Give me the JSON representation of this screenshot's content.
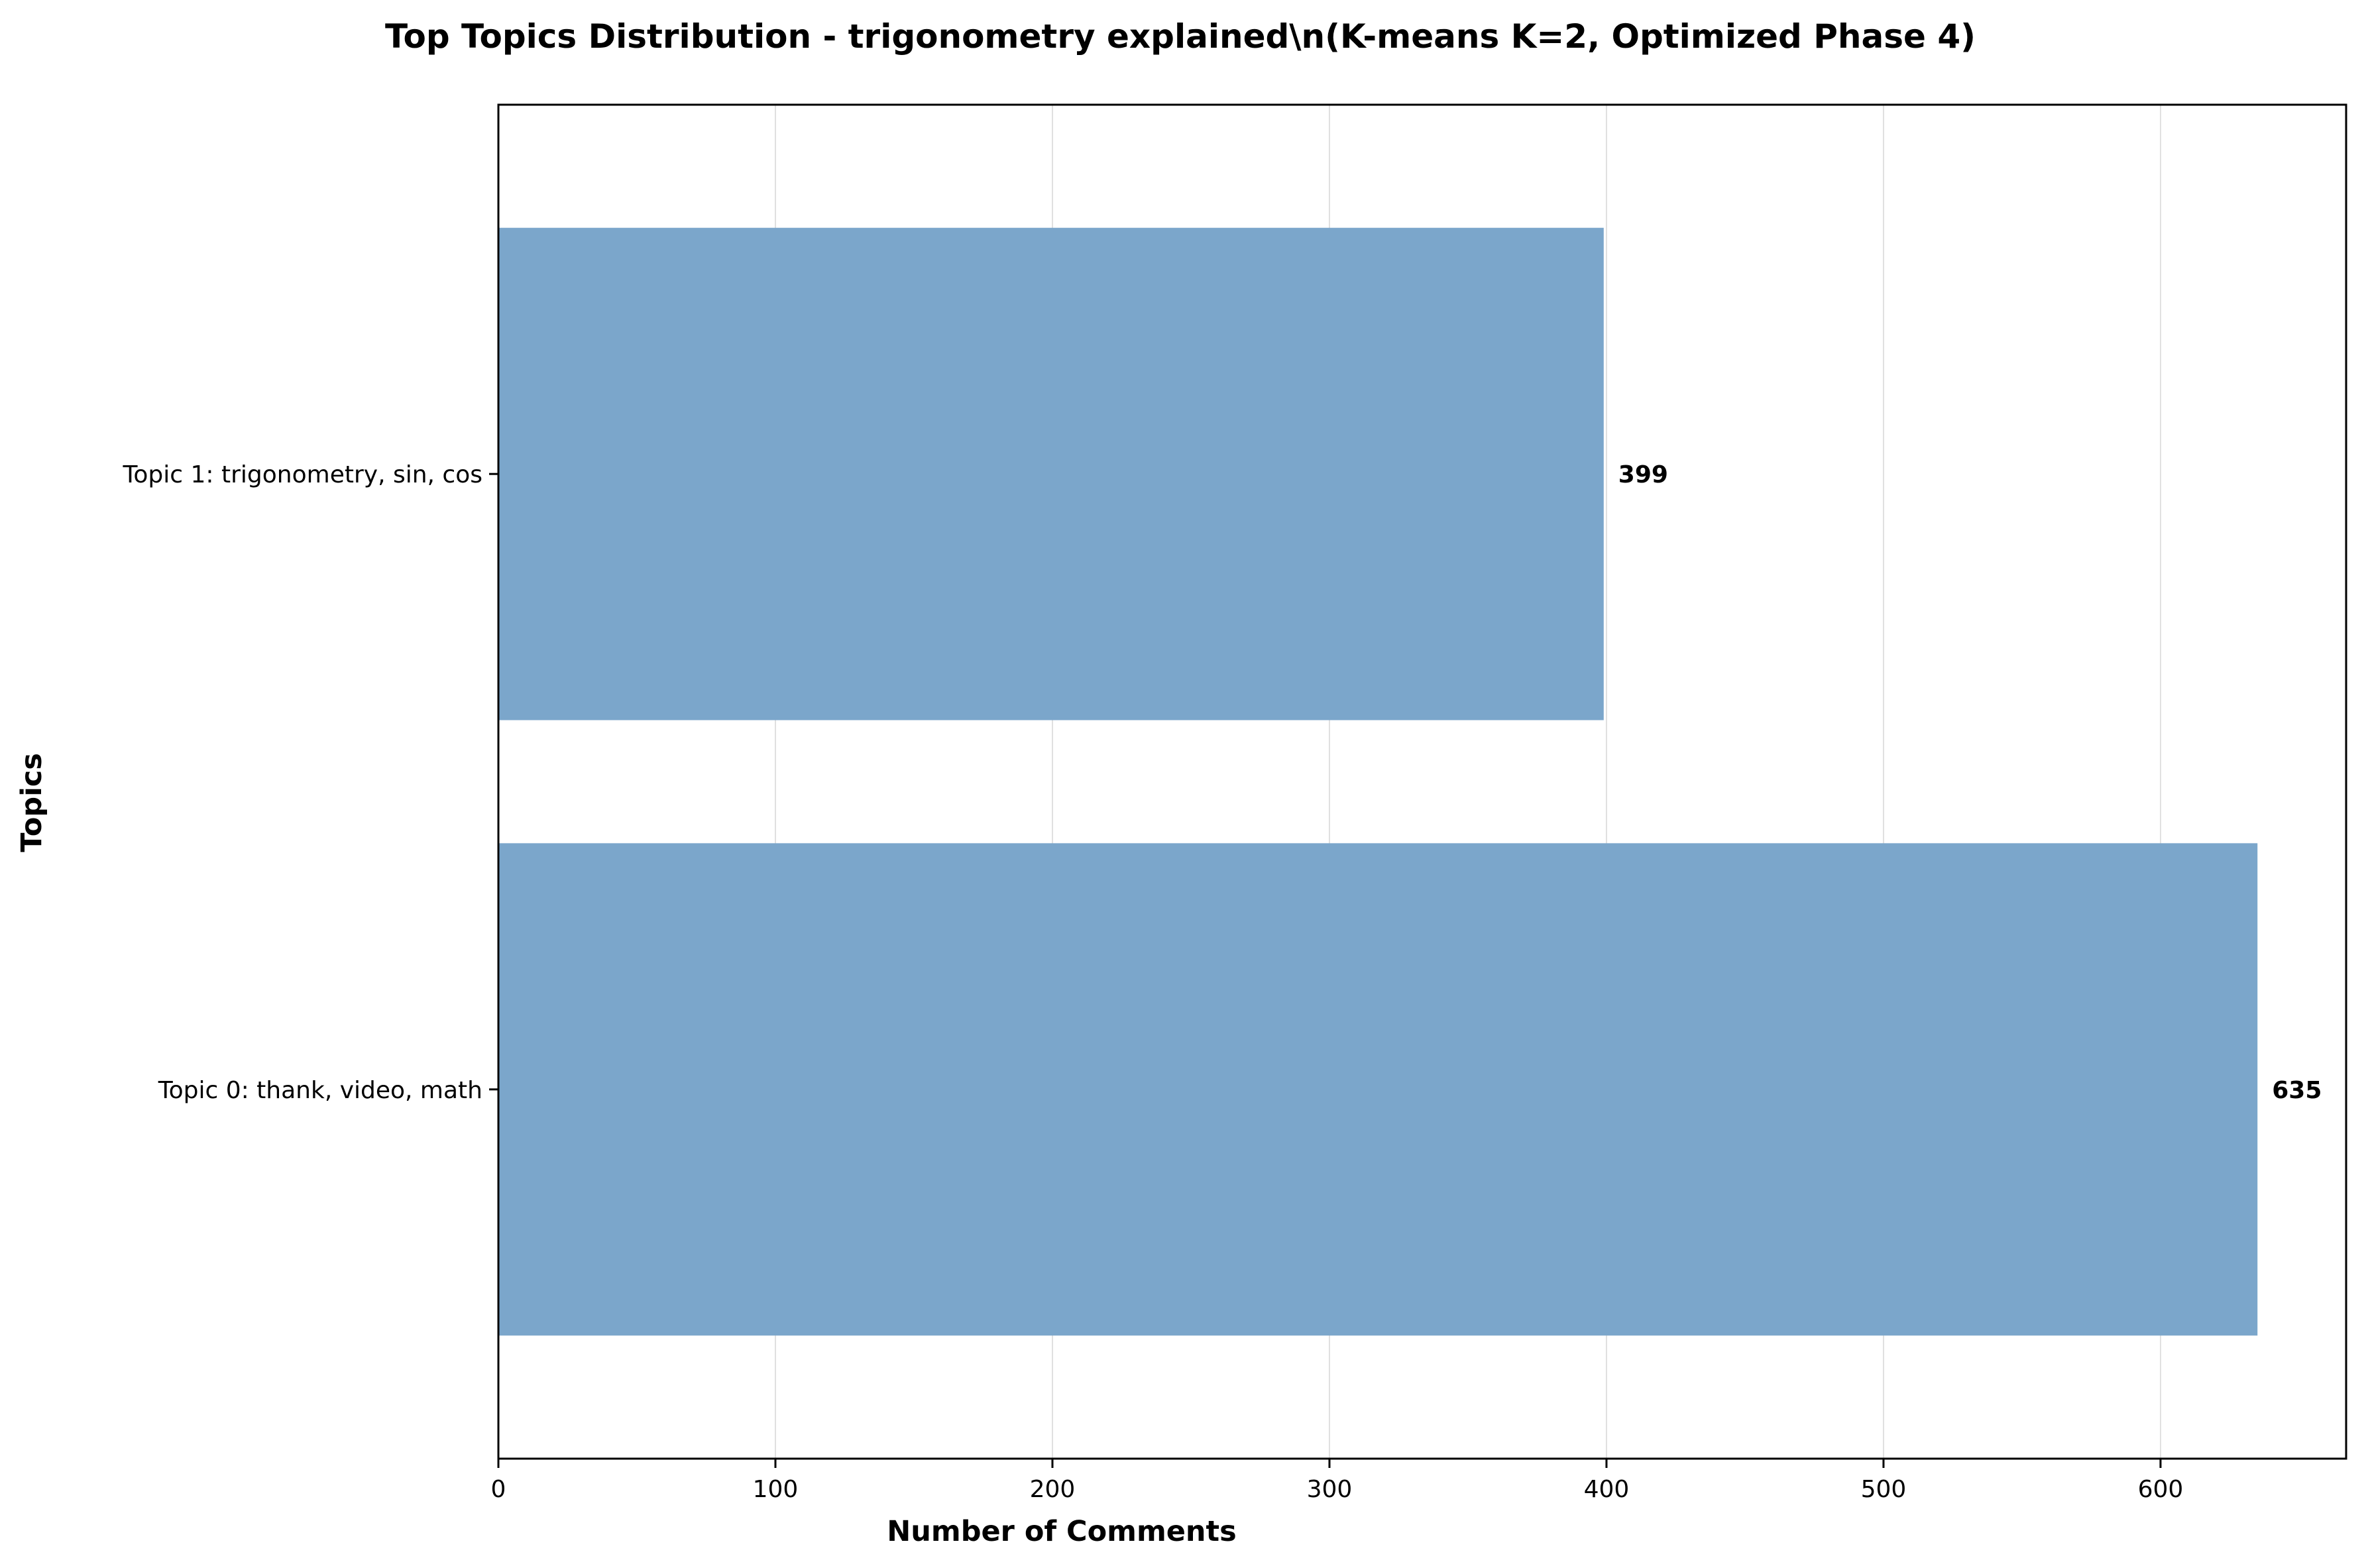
{
  "chart_data": {
    "type": "bar",
    "orientation": "horizontal",
    "title": "Top Topics Distribution - trigonometry explained\\n(K-means K=2, Optimized Phase 4)",
    "xlabel": "Number of Comments",
    "ylabel": "Topics",
    "categories": [
      "Topic 0: thank, video, math",
      "Topic 1: trigonometry, sin, cos"
    ],
    "values": [
      635,
      399
    ],
    "data_labels": [
      "635",
      "399"
    ],
    "xlim": [
      0,
      667
    ],
    "xticks": [
      0,
      100,
      200,
      300,
      400,
      500,
      600
    ],
    "grid": "vertical",
    "bar_color": "#7ba6cb",
    "legend": "none"
  }
}
